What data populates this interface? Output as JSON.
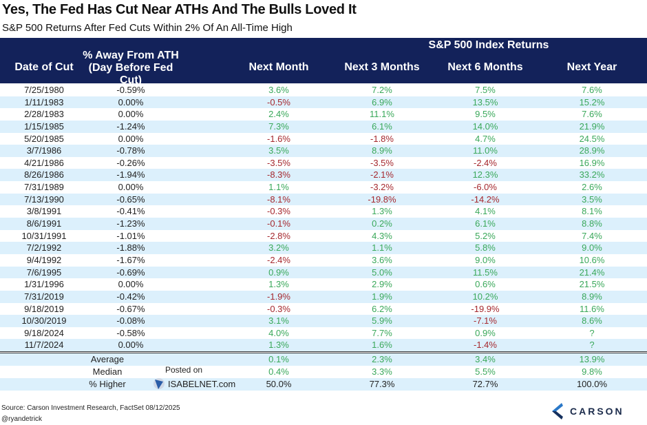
{
  "chart_data": {
    "type": "table",
    "title": "Yes, The Fed Has Cut Near ATHs And The Bulls Loved It",
    "subtitle": "S&P 500 Returns After Fed Cuts Within 2% Of An All-Time High",
    "group_header": "S&P 500 Index Returns",
    "columns": [
      "Date of Cut",
      "% Away From ATH",
      "(Day Before Fed Cut)",
      "Next Month",
      "Next 3 Months",
      "Next 6 Months",
      "Next Year"
    ],
    "rows": [
      [
        "7/25/1980",
        "-0.59%",
        "3.6%",
        "7.2%",
        "7.5%",
        "7.6%"
      ],
      [
        "1/11/1983",
        "0.00%",
        "-0.5%",
        "6.9%",
        "13.5%",
        "15.2%"
      ],
      [
        "2/28/1983",
        "0.00%",
        "2.4%",
        "11.1%",
        "9.5%",
        "7.6%"
      ],
      [
        "1/15/1985",
        "-1.24%",
        "7.3%",
        "6.1%",
        "14.0%",
        "21.9%"
      ],
      [
        "5/20/1985",
        "0.00%",
        "-1.6%",
        "-1.8%",
        "4.7%",
        "24.5%"
      ],
      [
        "3/7/1986",
        "-0.78%",
        "3.5%",
        "8.9%",
        "11.0%",
        "28.9%"
      ],
      [
        "4/21/1986",
        "-0.26%",
        "-3.5%",
        "-3.5%",
        "-2.4%",
        "16.9%"
      ],
      [
        "8/26/1986",
        "-1.94%",
        "-8.3%",
        "-2.1%",
        "12.3%",
        "33.2%"
      ],
      [
        "7/31/1989",
        "0.00%",
        "1.1%",
        "-3.2%",
        "-6.0%",
        "2.6%"
      ],
      [
        "7/13/1990",
        "-0.65%",
        "-8.1%",
        "-19.8%",
        "-14.2%",
        "3.5%"
      ],
      [
        "3/8/1991",
        "-0.41%",
        "-0.3%",
        "1.3%",
        "4.1%",
        "8.1%"
      ],
      [
        "8/6/1991",
        "-1.23%",
        "-0.1%",
        "0.2%",
        "6.1%",
        "8.8%"
      ],
      [
        "10/31/1991",
        "-1.01%",
        "-2.8%",
        "4.3%",
        "5.2%",
        "7.4%"
      ],
      [
        "7/2/1992",
        "-1.88%",
        "3.2%",
        "1.1%",
        "5.8%",
        "9.0%"
      ],
      [
        "9/4/1992",
        "-1.67%",
        "-2.4%",
        "3.6%",
        "9.0%",
        "10.6%"
      ],
      [
        "7/6/1995",
        "-0.69%",
        "0.9%",
        "5.0%",
        "11.5%",
        "21.4%"
      ],
      [
        "1/31/1996",
        "0.00%",
        "1.3%",
        "2.9%",
        "0.6%",
        "21.5%"
      ],
      [
        "7/31/2019",
        "-0.42%",
        "-1.9%",
        "1.9%",
        "10.2%",
        "8.9%"
      ],
      [
        "9/18/2019",
        "-0.67%",
        "-0.3%",
        "6.2%",
        "-19.9%",
        "11.6%"
      ],
      [
        "10/30/2019",
        "-0.08%",
        "3.1%",
        "5.9%",
        "-7.1%",
        "8.6%"
      ],
      [
        "9/18/2024",
        "-0.58%",
        "4.0%",
        "7.7%",
        "0.9%",
        "?"
      ],
      [
        "11/7/2024",
        "0.00%",
        "1.3%",
        "1.6%",
        "-1.4%",
        "?"
      ]
    ],
    "summary": [
      {
        "label": "Average",
        "values": [
          "0.1%",
          "2.3%",
          "3.4%",
          "13.9%"
        ]
      },
      {
        "label": "Median",
        "values": [
          "0.4%",
          "3.3%",
          "5.5%",
          "9.8%"
        ]
      },
      {
        "label": "% Higher",
        "values": [
          "50.0%",
          "77.3%",
          "72.7%",
          "100.0%"
        ]
      }
    ]
  },
  "watermark": {
    "posted": "Posted on",
    "site": "ISABELNET.com"
  },
  "footer": {
    "source": "Source: Carson Investment Research, FactSet 08/12/2025",
    "handle": "@ryandetrick",
    "logo": "CARSON"
  },
  "colors": {
    "header": "#13225a",
    "positive": "#3aa85a",
    "negative": "#a5282e",
    "stripe": "#dcf0fc"
  }
}
